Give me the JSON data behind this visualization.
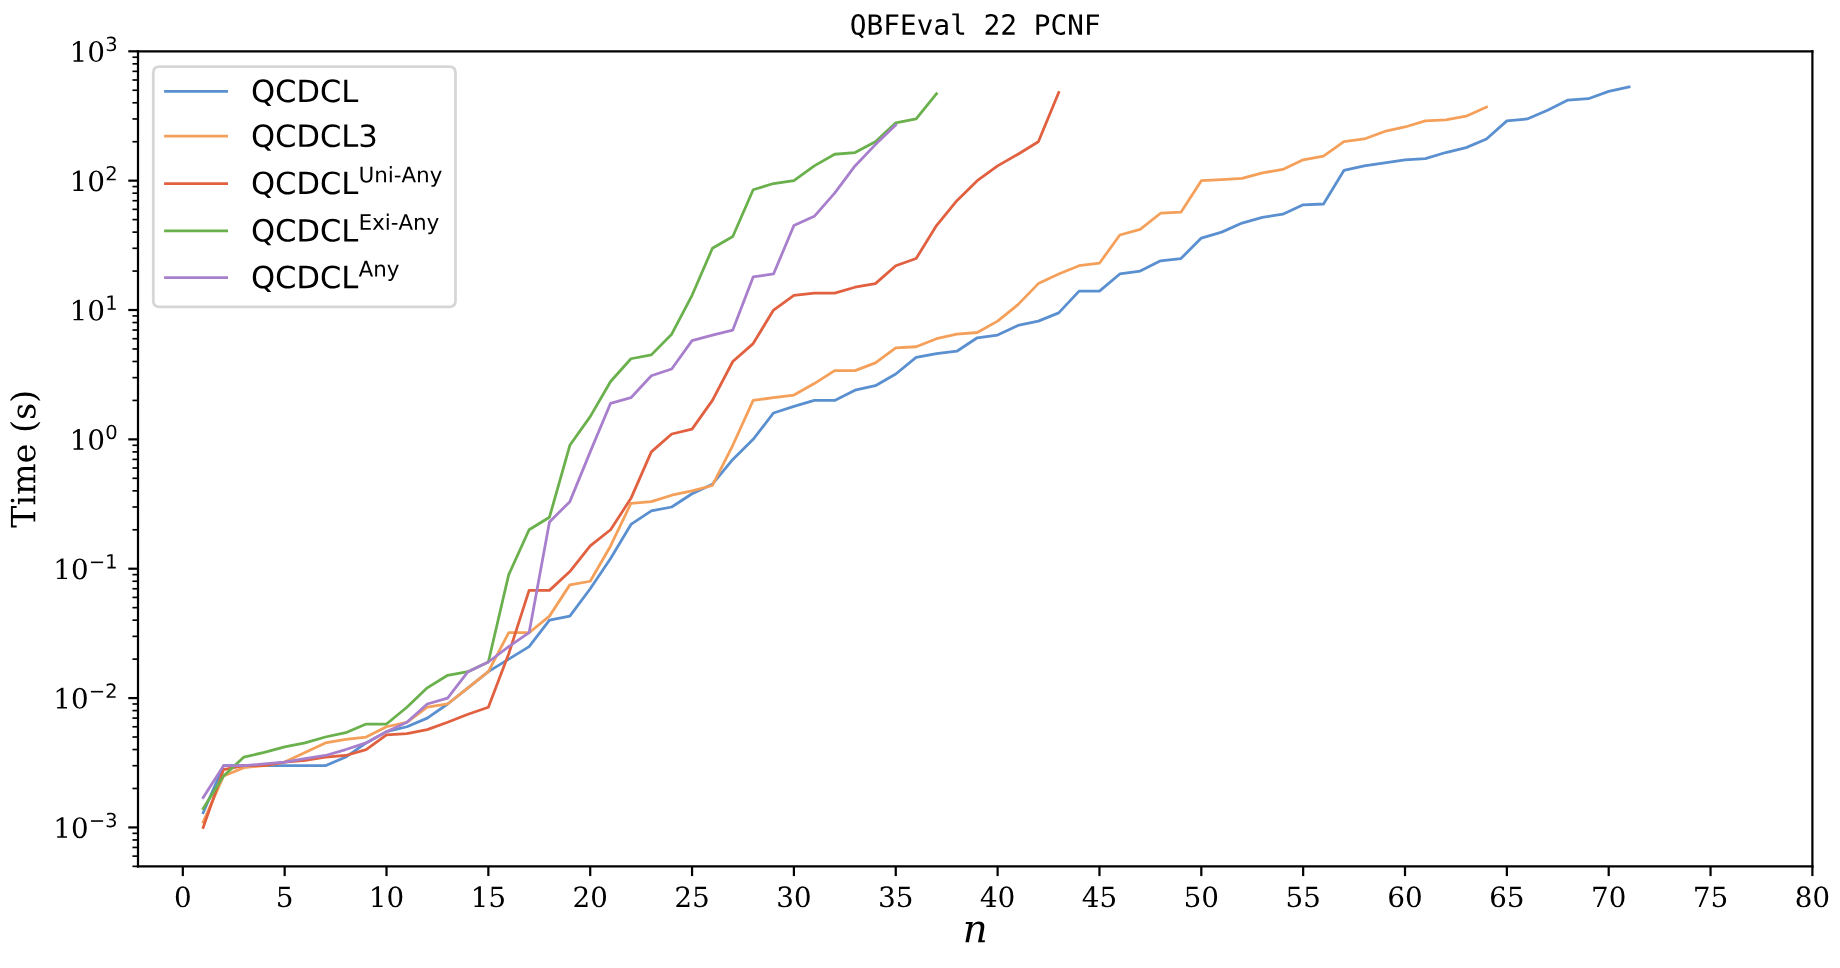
{
  "chart_data": {
    "type": "line",
    "title": "QBFEval 22 PCNF",
    "xlabel": "n",
    "ylabel": "Time (s)",
    "log": "y",
    "grid": false,
    "legend": "top left",
    "marker": "none",
    "line_style": "solid",
    "xlim": [
      -2.2,
      80
    ],
    "xticks": [
      0,
      5,
      10,
      15,
      20,
      25,
      30,
      35,
      40,
      45,
      50,
      55,
      60,
      65,
      70,
      75,
      80
    ],
    "ylim": [
      0.0005,
      1000
    ],
    "yticks": [
      {
        "value": 0.001,
        "label": "10$^{−3}$"
      },
      {
        "value": 0.01,
        "label": "10$^{−2}$"
      },
      {
        "value": 0.1,
        "label": "10$^{−1}$"
      },
      {
        "value": 1,
        "label": "10$^{0}$"
      },
      {
        "value": 10,
        "label": "10$^{1}$"
      },
      {
        "value": 100,
        "label": "10$^{2}$"
      },
      {
        "value": 1000,
        "label": "10$^{3}$"
      }
    ],
    "series": [
      {
        "name": "QCDCL",
        "color": "#5a8fd0",
        "x": [
          1,
          2,
          3,
          4,
          5,
          6,
          7,
          8,
          9,
          10,
          11,
          12,
          13,
          14,
          15,
          16,
          17,
          18,
          19,
          20,
          21,
          22,
          23,
          24,
          25,
          26,
          27,
          28,
          29,
          30,
          31,
          32,
          33,
          34,
          35,
          36,
          37,
          38,
          39,
          40,
          41,
          42,
          43,
          44,
          45,
          46,
          47,
          48,
          49,
          50,
          51,
          52,
          53,
          54,
          55,
          56,
          57,
          58,
          59,
          60,
          61,
          62,
          63,
          64,
          65,
          66,
          67,
          68,
          69,
          70,
          71
        ],
        "values": [
          0.0013,
          0.003,
          0.003,
          0.003,
          0.003,
          0.003,
          0.003,
          0.0035,
          0.0045,
          0.0055,
          0.006,
          0.007,
          0.009,
          0.012,
          0.016,
          0.02,
          0.025,
          0.04,
          0.043,
          0.07,
          0.12,
          0.22,
          0.28,
          0.3,
          0.38,
          0.45,
          0.7,
          1.0,
          1.6,
          1.8,
          2.0,
          2.0,
          2.4,
          2.6,
          3.2,
          4.3,
          4.6,
          4.8,
          6.1,
          6.4,
          7.6,
          8.2,
          9.5,
          14,
          14,
          19,
          20,
          24,
          25,
          36,
          40,
          47,
          52,
          55,
          65,
          66,
          120,
          130,
          137,
          145,
          148,
          165,
          180,
          210,
          290,
          300,
          350,
          420,
          430,
          490,
          530
        ]
      },
      {
        "name": "QCDCL3",
        "color": "#f5a05a",
        "x": [
          1,
          2,
          3,
          4,
          5,
          6,
          7,
          8,
          9,
          10,
          11,
          12,
          13,
          14,
          15,
          16,
          17,
          18,
          19,
          20,
          21,
          22,
          23,
          24,
          25,
          26,
          27,
          28,
          29,
          30,
          31,
          32,
          33,
          34,
          35,
          36,
          37,
          38,
          39,
          40,
          41,
          42,
          43,
          44,
          45,
          46,
          47,
          48,
          49,
          50,
          51,
          52,
          53,
          54,
          55,
          56,
          57,
          58,
          59,
          60,
          61,
          62,
          63,
          64
        ],
        "values": [
          0.0011,
          0.0025,
          0.0029,
          0.003,
          0.0032,
          0.0038,
          0.0045,
          0.0048,
          0.005,
          0.006,
          0.0065,
          0.0085,
          0.009,
          0.012,
          0.016,
          0.032,
          0.032,
          0.043,
          0.075,
          0.08,
          0.15,
          0.32,
          0.33,
          0.37,
          0.4,
          0.44,
          0.9,
          2.0,
          2.1,
          2.2,
          2.7,
          3.4,
          3.4,
          3.9,
          5.1,
          5.2,
          6.0,
          6.5,
          6.7,
          8.2,
          11,
          16,
          19,
          22,
          23,
          38,
          42,
          56,
          57,
          100,
          102,
          104,
          115,
          122,
          145,
          155,
          200,
          210,
          240,
          260,
          290,
          295,
          315,
          370
        ]
      },
      {
        "name": "QCDCL$^{Uni-Any}$",
        "color": "#e0603f",
        "x": [
          1,
          2,
          3,
          4,
          5,
          6,
          7,
          8,
          9,
          10,
          11,
          12,
          13,
          14,
          15,
          16,
          17,
          18,
          19,
          20,
          21,
          22,
          23,
          24,
          25,
          26,
          27,
          28,
          29,
          30,
          31,
          32,
          33,
          34,
          35,
          36,
          37,
          38,
          39,
          40,
          41,
          42,
          43
        ],
        "values": [
          0.001,
          0.0028,
          0.003,
          0.003,
          0.0032,
          0.0033,
          0.0035,
          0.0036,
          0.004,
          0.0052,
          0.0053,
          0.0057,
          0.0065,
          0.0075,
          0.0085,
          0.022,
          0.068,
          0.068,
          0.095,
          0.15,
          0.2,
          0.35,
          0.8,
          1.1,
          1.2,
          2.0,
          4.0,
          5.5,
          10,
          13,
          13.5,
          13.5,
          15,
          16,
          22,
          25,
          45,
          70,
          100,
          130,
          160,
          200,
          480
        ]
      },
      {
        "name": "QCDCL$^{Exi-Any}$",
        "color": "#6ab04c",
        "x": [
          1,
          2,
          3,
          4,
          5,
          6,
          7,
          8,
          9,
          10,
          11,
          12,
          13,
          14,
          15,
          16,
          17,
          18,
          19,
          20,
          21,
          22,
          23,
          24,
          25,
          26,
          27,
          28,
          29,
          30,
          31,
          32,
          33,
          34,
          35,
          36,
          37
        ],
        "values": [
          0.0014,
          0.0025,
          0.0035,
          0.0038,
          0.0042,
          0.0045,
          0.005,
          0.0054,
          0.0063,
          0.0063,
          0.0085,
          0.012,
          0.015,
          0.016,
          0.019,
          0.09,
          0.2,
          0.25,
          0.9,
          1.5,
          2.8,
          4.2,
          4.5,
          6.5,
          13,
          30,
          37,
          85,
          95,
          100,
          130,
          160,
          165,
          200,
          280,
          300,
          470
        ]
      },
      {
        "name": "QCDCL$^{Any}$",
        "color": "#a77fcc",
        "x": [
          1,
          2,
          3,
          4,
          5,
          6,
          7,
          8,
          9,
          10,
          11,
          12,
          13,
          14,
          15,
          16,
          17,
          18,
          19,
          20,
          21,
          22,
          23,
          24,
          25,
          26,
          27,
          28,
          29,
          30,
          31,
          32,
          33,
          34,
          35
        ],
        "values": [
          0.0017,
          0.003,
          0.003,
          0.0031,
          0.0032,
          0.0034,
          0.0036,
          0.004,
          0.0045,
          0.0055,
          0.0065,
          0.009,
          0.01,
          0.016,
          0.019,
          0.025,
          0.032,
          0.23,
          0.33,
          0.8,
          1.9,
          2.1,
          3.1,
          3.5,
          5.8,
          6.4,
          7.0,
          18,
          19,
          45,
          53,
          80,
          130,
          190,
          270
        ]
      }
    ]
  }
}
